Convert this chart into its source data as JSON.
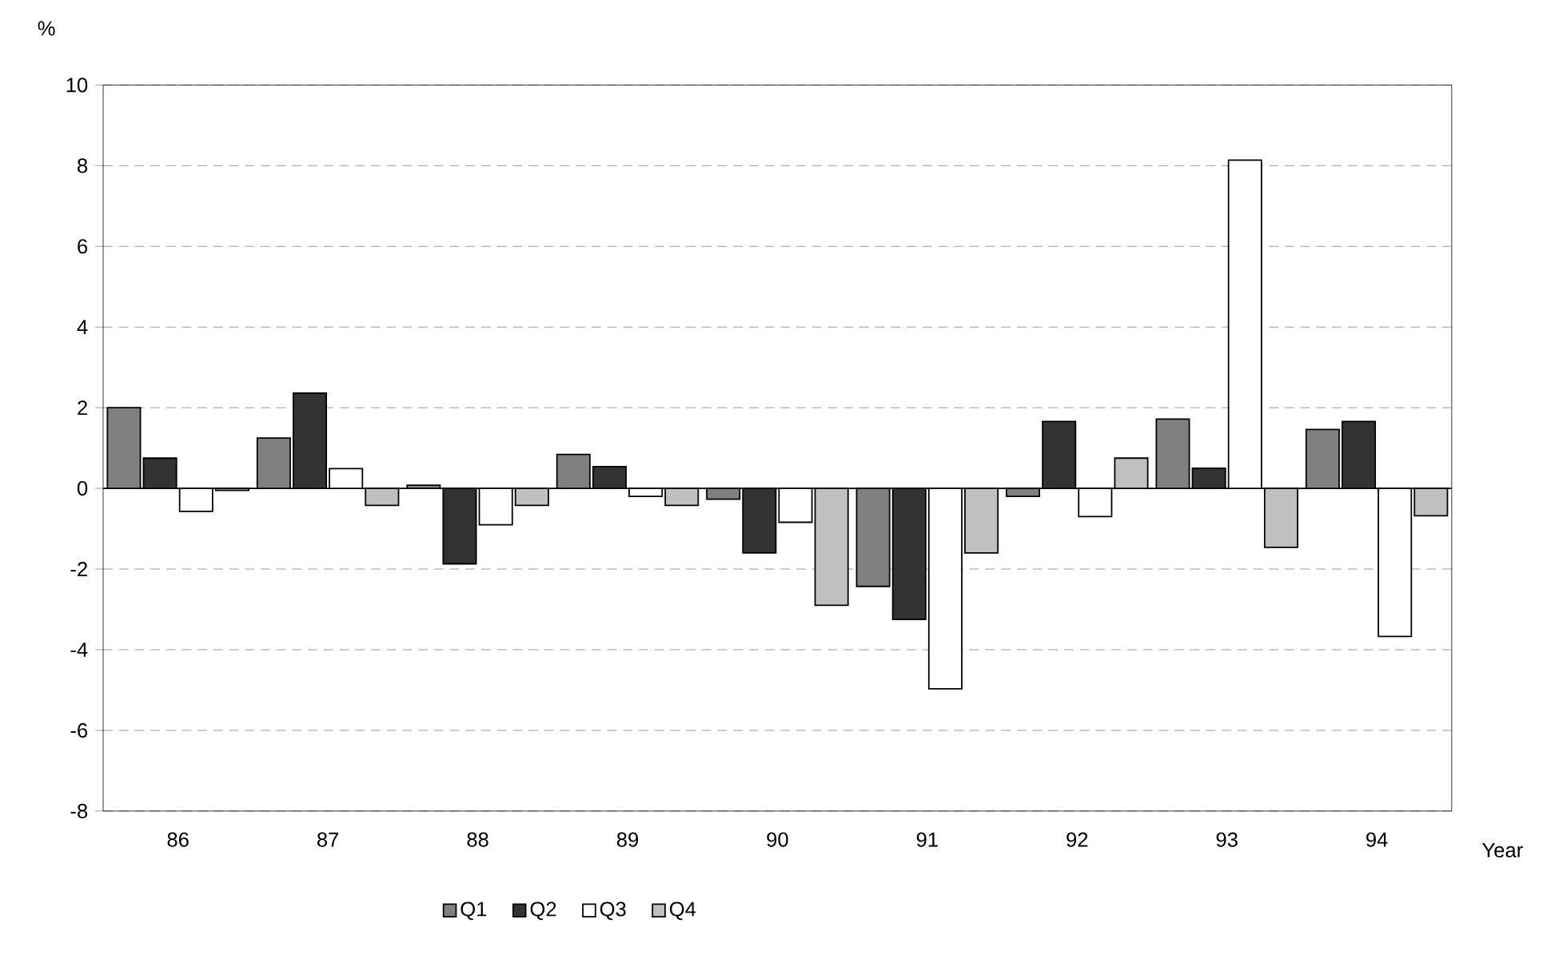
{
  "chart_data": {
    "type": "bar",
    "xlabel": "Year",
    "ylabel": "%",
    "categories": [
      "86",
      "87",
      "88",
      "89",
      "90",
      "91",
      "92",
      "93",
      "94"
    ],
    "series": [
      {
        "name": "Q1",
        "color": "#808080",
        "values": [
          2.0,
          1.25,
          0.08,
          0.84,
          -0.27,
          -2.43,
          -0.2,
          1.72,
          1.46
        ]
      },
      {
        "name": "Q2",
        "color": "#333333",
        "values": [
          0.75,
          2.36,
          -1.87,
          0.54,
          -1.6,
          -3.25,
          1.66,
          0.5,
          1.66
        ]
      },
      {
        "name": "Q3",
        "color": "#ffffff",
        "values": [
          -0.57,
          0.49,
          -0.9,
          -0.2,
          -0.84,
          -4.97,
          -0.7,
          8.14,
          -3.67
        ]
      },
      {
        "name": "Q4",
        "color": "#c0c0c0",
        "values": [
          -0.05,
          -0.42,
          -0.42,
          -0.42,
          -2.9,
          -1.6,
          0.75,
          -1.46,
          -0.68
        ]
      }
    ],
    "ylim": [
      -8,
      10
    ],
    "yticks": [
      -8,
      -6,
      -4,
      -2,
      0,
      2,
      4,
      6,
      8,
      10
    ],
    "grid": "y",
    "legend": "bottom"
  }
}
